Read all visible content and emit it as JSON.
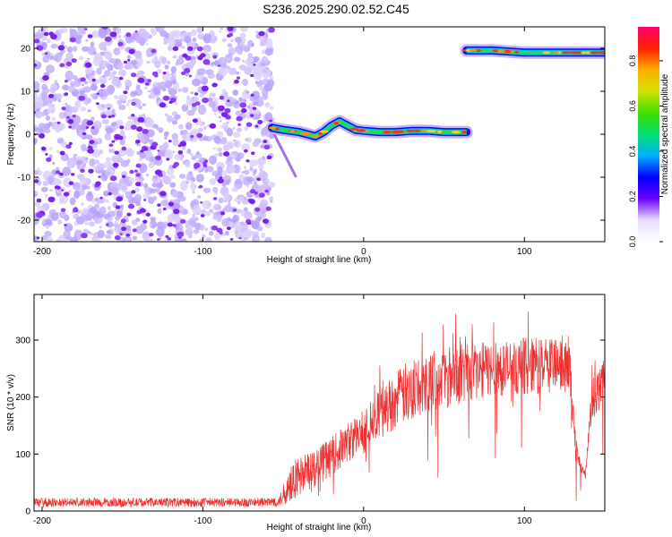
{
  "title": "S236.2025.290.02.52.C45",
  "chart_data": [
    {
      "type": "heatmap",
      "name": "spectrogram",
      "xlabel": "Height of straight line (km)",
      "ylabel": "Frequency (Hz)",
      "xlim": [
        -205,
        150
      ],
      "ylim": [
        -25,
        25
      ],
      "xticks": [
        -200,
        -100,
        0,
        100
      ],
      "yticks": [
        -20,
        -10,
        0,
        10,
        20
      ],
      "colorbar": {
        "label": "Normalized spectral amplitude",
        "range": [
          0.0,
          0.95
        ],
        "ticks": [
          0.0,
          0.2,
          0.4,
          0.6,
          0.8
        ],
        "colors": [
          "#ffffff",
          "#e8dcff",
          "#6a00ff",
          "#0000ff",
          "#00b0ff",
          "#00e070",
          "#40e000",
          "#d0e000",
          "#ffb000",
          "#ff2000",
          "#ff0070"
        ]
      },
      "noise_region_x": [
        -205,
        -57
      ],
      "signal_tracks": [
        {
          "x": [
            -57,
            -50,
            -40,
            -30,
            -25,
            -20,
            -15,
            -10,
            -5,
            0,
            10,
            20,
            30,
            40,
            50,
            60,
            64
          ],
          "y": [
            1.5,
            1,
            0.5,
            -0.5,
            0.5,
            2,
            3,
            2,
            1,
            0.8,
            0.5,
            0.5,
            0.8,
            0.8,
            0.5,
            0.5,
            0.5
          ]
        },
        {
          "x": [
            64,
            80,
            100,
            120,
            140,
            150
          ],
          "y": [
            19.5,
            19.5,
            19,
            19,
            19,
            19
          ]
        }
      ]
    },
    {
      "type": "line",
      "name": "snr",
      "xlabel": "Height of straight line (km)",
      "ylabel": "SNR (10 * v/v)",
      "xlim": [
        -205,
        150
      ],
      "ylim": [
        0,
        380
      ],
      "xticks": [
        -200,
        -100,
        0,
        100
      ],
      "yticks": [
        0,
        100,
        200,
        300
      ],
      "color": "#ee3030",
      "envelope": {
        "x": [
          -205,
          -150,
          -100,
          -60,
          -52,
          -48,
          -45,
          -40,
          -30,
          -20,
          -10,
          0,
          10,
          20,
          30,
          40,
          50,
          60,
          70,
          80,
          90,
          100,
          110,
          120,
          128,
          132,
          138,
          142,
          145,
          150
        ],
        "base": [
          15,
          15,
          15,
          15,
          18,
          40,
          50,
          60,
          75,
          95,
          120,
          140,
          170,
          195,
          215,
          230,
          235,
          240,
          245,
          250,
          250,
          255,
          255,
          255,
          250,
          100,
          60,
          200,
          210,
          220
        ],
        "noise": [
          8,
          8,
          8,
          8,
          10,
          30,
          35,
          35,
          35,
          35,
          35,
          40,
          45,
          50,
          55,
          55,
          55,
          55,
          50,
          50,
          50,
          50,
          50,
          45,
          45,
          20,
          10,
          40,
          40,
          40
        ]
      }
    }
  ]
}
